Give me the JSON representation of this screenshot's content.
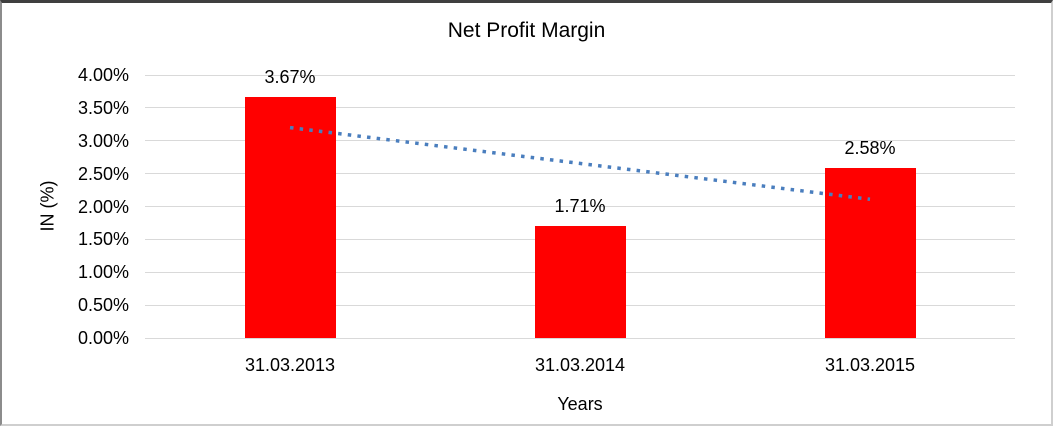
{
  "chart_data": {
    "type": "bar",
    "title": "Net Profit Margin",
    "xlabel": "Years",
    "ylabel": "IN (%)",
    "categories": [
      "31.03.2013",
      "31.03.2014",
      "31.03.2015"
    ],
    "values": [
      3.67,
      1.71,
      2.58
    ],
    "bar_labels": [
      "3.67%",
      "1.71%",
      "2.58%"
    ],
    "ylim": [
      0,
      4
    ],
    "yticks": [
      {
        "value": 4.0,
        "label": "4.00%"
      },
      {
        "value": 3.5,
        "label": "3.50%"
      },
      {
        "value": 3.0,
        "label": "3.00%"
      },
      {
        "value": 2.5,
        "label": "2.50%"
      },
      {
        "value": 2.0,
        "label": "2.00%"
      },
      {
        "value": 1.5,
        "label": "1.50%"
      },
      {
        "value": 1.0,
        "label": "1.00%"
      },
      {
        "value": 0.5,
        "label": "0.50%"
      },
      {
        "value": 0.0,
        "label": "0.00%"
      }
    ],
    "grid": true,
    "legend": "none",
    "bar_color": "#ff0000",
    "gridline_color": "#d9d9d9",
    "trendline": {
      "type": "linear",
      "style": "dotted",
      "color": "#4a7ebe",
      "points": [
        {
          "category_index": 0,
          "value": 3.2
        },
        {
          "category_index": 2,
          "value": 2.11
        }
      ]
    }
  }
}
